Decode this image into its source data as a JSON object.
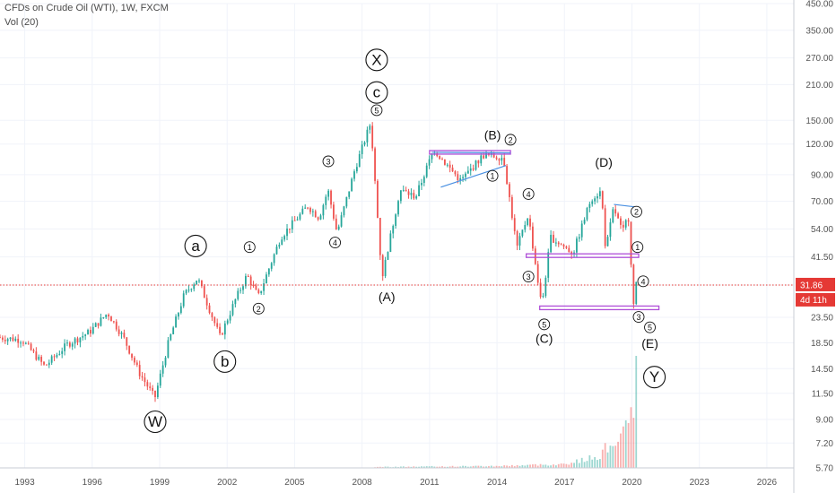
{
  "header": {
    "title": "CFDs on Crude Oil (WTI), 1W, FXCM",
    "indicator": "Vol (20)"
  },
  "colors": {
    "up": "#26a69a",
    "down": "#ef5350",
    "trendline": "#4a90e2",
    "zone": "#b04fd8",
    "price_line": "#e53935",
    "grid": "#f0f3fa"
  },
  "badges": {
    "price": "31.86",
    "countdown": "4d 11h"
  },
  "chart_data": {
    "type": "line",
    "title": "CFDs on Crude Oil (WTI), 1W, FXCM",
    "y_scale": "log",
    "ylim": [
      5.7,
      450
    ],
    "xlim": [
      1991.9,
      2027.2
    ],
    "x_ticks": [
      "1993",
      "1996",
      "1999",
      "2002",
      "2005",
      "2008",
      "2011",
      "2014",
      "2017",
      "2020",
      "2023",
      "2026"
    ],
    "x_tick_values": [
      1993,
      1996,
      1999,
      2002,
      2005,
      2008,
      2011,
      2014,
      2017,
      2020,
      2023,
      2026
    ],
    "y_ticks": [
      "450.00",
      "350.00",
      "270.00",
      "210.00",
      "150.00",
      "120.00",
      "90.00",
      "70.00",
      "54.00",
      "41.50",
      "31.86",
      "23.50",
      "18.50",
      "14.50",
      "11.50",
      "9.00",
      "7.20",
      "5.70"
    ],
    "y_tick_values": [
      450,
      350,
      270,
      210,
      150,
      120,
      90,
      70,
      54,
      41.5,
      31.86,
      23.5,
      18.5,
      14.5,
      11.5,
      9,
      7.2,
      5.7
    ],
    "price_anchors": [
      [
        1991.9,
        19.5
      ],
      [
        1993.0,
        19.0
      ],
      [
        1994.0,
        14.8
      ],
      [
        1995.0,
        18.2
      ],
      [
        1996.0,
        20.5
      ],
      [
        1996.8,
        24.5
      ],
      [
        1997.5,
        19.5
      ],
      [
        1998.2,
        14.0
      ],
      [
        1998.9,
        11.0
      ],
      [
        1999.5,
        18.5
      ],
      [
        2000.2,
        29.0
      ],
      [
        2000.8,
        34.0
      ],
      [
        2001.8,
        19.5
      ],
      [
        2002.5,
        28.0
      ],
      [
        2003.0,
        35.0
      ],
      [
        2003.5,
        28.5
      ],
      [
        2004.5,
        50.0
      ],
      [
        2005.7,
        67.0
      ],
      [
        2006.2,
        60.0
      ],
      [
        2006.6,
        78.0
      ],
      [
        2007.0,
        52.0
      ],
      [
        2007.8,
        95.0
      ],
      [
        2008.5,
        147.0
      ],
      [
        2009.0,
        34.0
      ],
      [
        2009.8,
        78.0
      ],
      [
        2010.5,
        73.0
      ],
      [
        2011.3,
        114.0
      ],
      [
        2012.5,
        85.0
      ],
      [
        2013.5,
        108.0
      ],
      [
        2014.4,
        106.0
      ],
      [
        2015.0,
        45.0
      ],
      [
        2015.5,
        62.0
      ],
      [
        2016.1,
        26.0
      ],
      [
        2016.5,
        50.0
      ],
      [
        2017.5,
        43.0
      ],
      [
        2018.3,
        72.0
      ],
      [
        2018.75,
        77.0
      ],
      [
        2018.95,
        44.0
      ],
      [
        2019.3,
        66.0
      ],
      [
        2019.7,
        52.0
      ],
      [
        2019.95,
        62.0
      ],
      [
        2020.2,
        25.5
      ],
      [
        2020.28,
        31.86
      ]
    ],
    "volume_anchors": [
      [
        2008.5,
        0.01
      ],
      [
        2014.0,
        0.02
      ],
      [
        2017.0,
        0.04
      ],
      [
        2018.5,
        0.12
      ],
      [
        2019.3,
        0.32
      ],
      [
        2019.8,
        0.38
      ],
      [
        2020.15,
        0.72
      ],
      [
        2020.28,
        1.0
      ]
    ],
    "trendlines": [
      {
        "from": [
          2011.1,
          111.0
        ],
        "to": [
          2014.6,
          110.5
        ]
      },
      {
        "from": [
          2011.5,
          80.0
        ],
        "to": [
          2014.4,
          98.0
        ]
      },
      {
        "from": [
          2019.2,
          68.0
        ],
        "to": [
          2020.1,
          66.5
        ]
      }
    ],
    "zones": [
      {
        "x0": 2011.0,
        "x1": 2014.6,
        "y": 111.0
      },
      {
        "x0": 2015.3,
        "x1": 2020.3,
        "y": 42.0
      },
      {
        "x0": 2015.9,
        "x1": 2021.2,
        "y": 25.7
      }
    ],
    "current_price": 31.86,
    "annotations": [
      {
        "text": "X",
        "x": 2008.65,
        "y": 265,
        "style": "circle-large"
      },
      {
        "text": "c",
        "x": 2008.65,
        "y": 195,
        "style": "circle-large"
      },
      {
        "text": "5",
        "x": 2008.65,
        "y": 165,
        "style": "circle-small"
      },
      {
        "text": "W",
        "x": 1998.8,
        "y": 8.8,
        "style": "circle-large"
      },
      {
        "text": "a",
        "x": 2000.6,
        "y": 46,
        "style": "circle-large"
      },
      {
        "text": "b",
        "x": 2001.9,
        "y": 15.5,
        "style": "circle-large"
      },
      {
        "text": "1",
        "x": 2003.0,
        "y": 45.5,
        "style": "circle-small"
      },
      {
        "text": "2",
        "x": 2003.4,
        "y": 25.5,
        "style": "circle-small"
      },
      {
        "text": "3",
        "x": 2006.5,
        "y": 102,
        "style": "circle-small"
      },
      {
        "text": "4",
        "x": 2006.8,
        "y": 47.5,
        "style": "circle-small"
      },
      {
        "text": "(A)",
        "x": 2009.1,
        "y": 28.5,
        "style": "plain"
      },
      {
        "text": "(B)",
        "x": 2013.8,
        "y": 131,
        "style": "plain"
      },
      {
        "text": "2",
        "x": 2014.6,
        "y": 125,
        "style": "circle-small"
      },
      {
        "text": "1",
        "x": 2013.8,
        "y": 89,
        "style": "circle-small"
      },
      {
        "text": "4",
        "x": 2015.4,
        "y": 75,
        "style": "circle-small"
      },
      {
        "text": "3",
        "x": 2015.4,
        "y": 34.5,
        "style": "circle-small"
      },
      {
        "text": "5",
        "x": 2016.1,
        "y": 22.0,
        "style": "circle-small"
      },
      {
        "text": "(C)",
        "x": 2016.1,
        "y": 19.3,
        "style": "plain"
      },
      {
        "text": "(D)",
        "x": 2018.75,
        "y": 101,
        "style": "plain"
      },
      {
        "text": "2",
        "x": 2020.2,
        "y": 63.5,
        "style": "circle-small"
      },
      {
        "text": "1",
        "x": 2020.25,
        "y": 45.5,
        "style": "circle-small"
      },
      {
        "text": "4",
        "x": 2020.5,
        "y": 33.0,
        "style": "circle-small"
      },
      {
        "text": "3",
        "x": 2020.3,
        "y": 23.6,
        "style": "circle-small"
      },
      {
        "text": "5",
        "x": 2020.8,
        "y": 21.4,
        "style": "circle-small"
      },
      {
        "text": "(E)",
        "x": 2020.8,
        "y": 18.4,
        "style": "plain"
      },
      {
        "text": "Y",
        "x": 2021.0,
        "y": 13.4,
        "style": "circle-large"
      }
    ]
  }
}
